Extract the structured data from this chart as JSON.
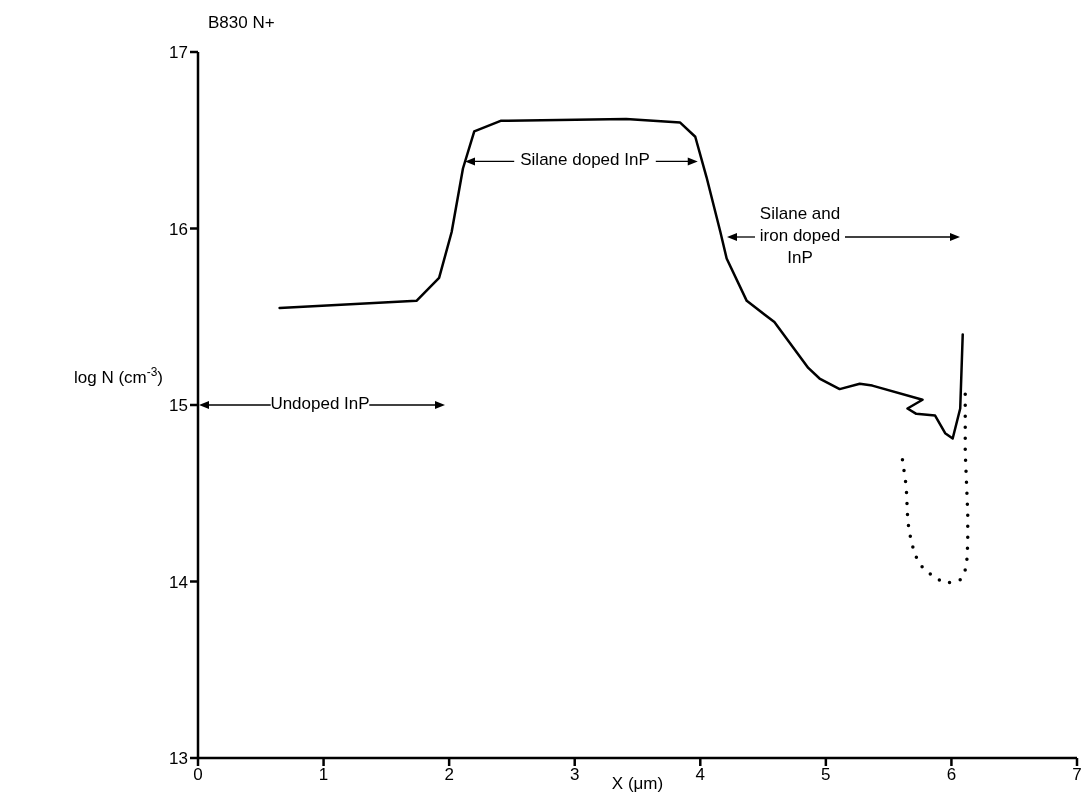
{
  "chart_data": {
    "type": "line",
    "title": "B830 N+",
    "xlabel": "X (μm)",
    "ylabel": "log N (cm$^{-3}$)",
    "xlim": [
      0,
      7
    ],
    "xticks": [
      0,
      1,
      2,
      3,
      4,
      5,
      6,
      7
    ],
    "ylim": [
      13,
      17
    ],
    "yticks": [
      13,
      14,
      15,
      16,
      17
    ],
    "grid": false,
    "series": [
      {
        "color": "#000000",
        "line_style": "solid",
        "marker": "none",
        "x": [
          0.65,
          1.74,
          1.92,
          2.02,
          2.11,
          2.2,
          2.41,
          3.41,
          3.84,
          3.96,
          4.05,
          4.16,
          4.21,
          4.37,
          4.59,
          4.86,
          4.95,
          5.11,
          5.27,
          5.37,
          5.77,
          5.65,
          5.72,
          5.87,
          5.95,
          6.01,
          6.07,
          6.09
        ],
        "values": [
          15.55,
          15.59,
          15.72,
          15.98,
          16.34,
          16.55,
          16.61,
          16.62,
          16.6,
          16.52,
          16.29,
          15.98,
          15.83,
          15.59,
          15.47,
          15.21,
          15.15,
          15.09,
          15.12,
          15.11,
          15.03,
          14.98,
          14.95,
          14.94,
          14.84,
          14.81,
          14.98,
          15.4
        ]
      },
      {
        "color": "#000000",
        "line_style": "dotted",
        "marker": "none",
        "x": [
          5.61,
          5.64,
          5.65,
          5.66,
          5.68,
          5.71,
          5.77,
          5.87,
          5.96,
          6.07,
          6.12,
          6.13,
          6.13,
          6.12,
          6.11,
          6.11,
          6.11
        ],
        "values": [
          14.69,
          14.54,
          14.38,
          14.3,
          14.23,
          14.15,
          14.08,
          14.02,
          13.99,
          14.01,
          14.08,
          14.22,
          14.38,
          14.56,
          14.73,
          14.93,
          15.12
        ]
      }
    ],
    "annotations": [
      "Undoped InP",
      {
        "text": "Silane doped InP",
        "x": 3.98,
        "y": 16.38
      },
      "Silane and\niron doped\nInP"
    ]
  }
}
